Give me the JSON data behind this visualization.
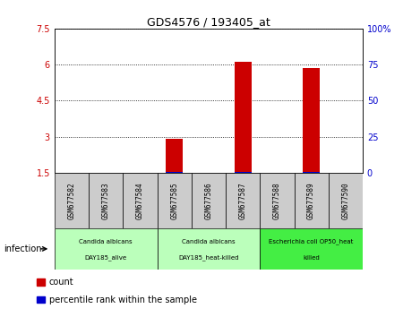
{
  "title": "GDS4576 / 193405_at",
  "samples": [
    "GSM677582",
    "GSM677583",
    "GSM677584",
    "GSM677585",
    "GSM677586",
    "GSM677587",
    "GSM677588",
    "GSM677589",
    "GSM677590"
  ],
  "count_values": [
    null,
    null,
    null,
    2.9,
    null,
    6.1,
    null,
    5.85,
    null
  ],
  "percentile_values": [
    null,
    null,
    null,
    0.02,
    null,
    0.02,
    null,
    0.02,
    null
  ],
  "ylim": [
    1.5,
    7.5
  ],
  "yticks": [
    1.5,
    3.0,
    4.5,
    6.0,
    7.5
  ],
  "ytick_labels_left": [
    "1.5",
    "3",
    "4.5",
    "6",
    "7.5"
  ],
  "yticks_right": [
    0,
    25,
    50,
    75,
    100
  ],
  "ytick_labels_right": [
    "0",
    "25",
    "50",
    "75",
    "100%"
  ],
  "bar_width": 0.5,
  "count_color": "#cc0000",
  "percentile_color": "#0000cc",
  "grid_color": "#000000",
  "groups": [
    {
      "label_top": "Candida albicans",
      "label_bot": "DAY185_alive",
      "start": 0,
      "end": 3,
      "color": "#bbffbb"
    },
    {
      "label_top": "Candida albicans",
      "label_bot": "DAY185_heat-killed",
      "start": 3,
      "end": 6,
      "color": "#bbffbb"
    },
    {
      "label_top": "Escherichia coli OP50_heat",
      "label_bot": "killed",
      "start": 6,
      "end": 9,
      "color": "#44ee44"
    }
  ],
  "xlabel_infection": "infection",
  "legend_count": "count",
  "legend_percentile": "percentile rank within the sample",
  "sample_box_color": "#cccccc",
  "background_color": "#ffffff"
}
